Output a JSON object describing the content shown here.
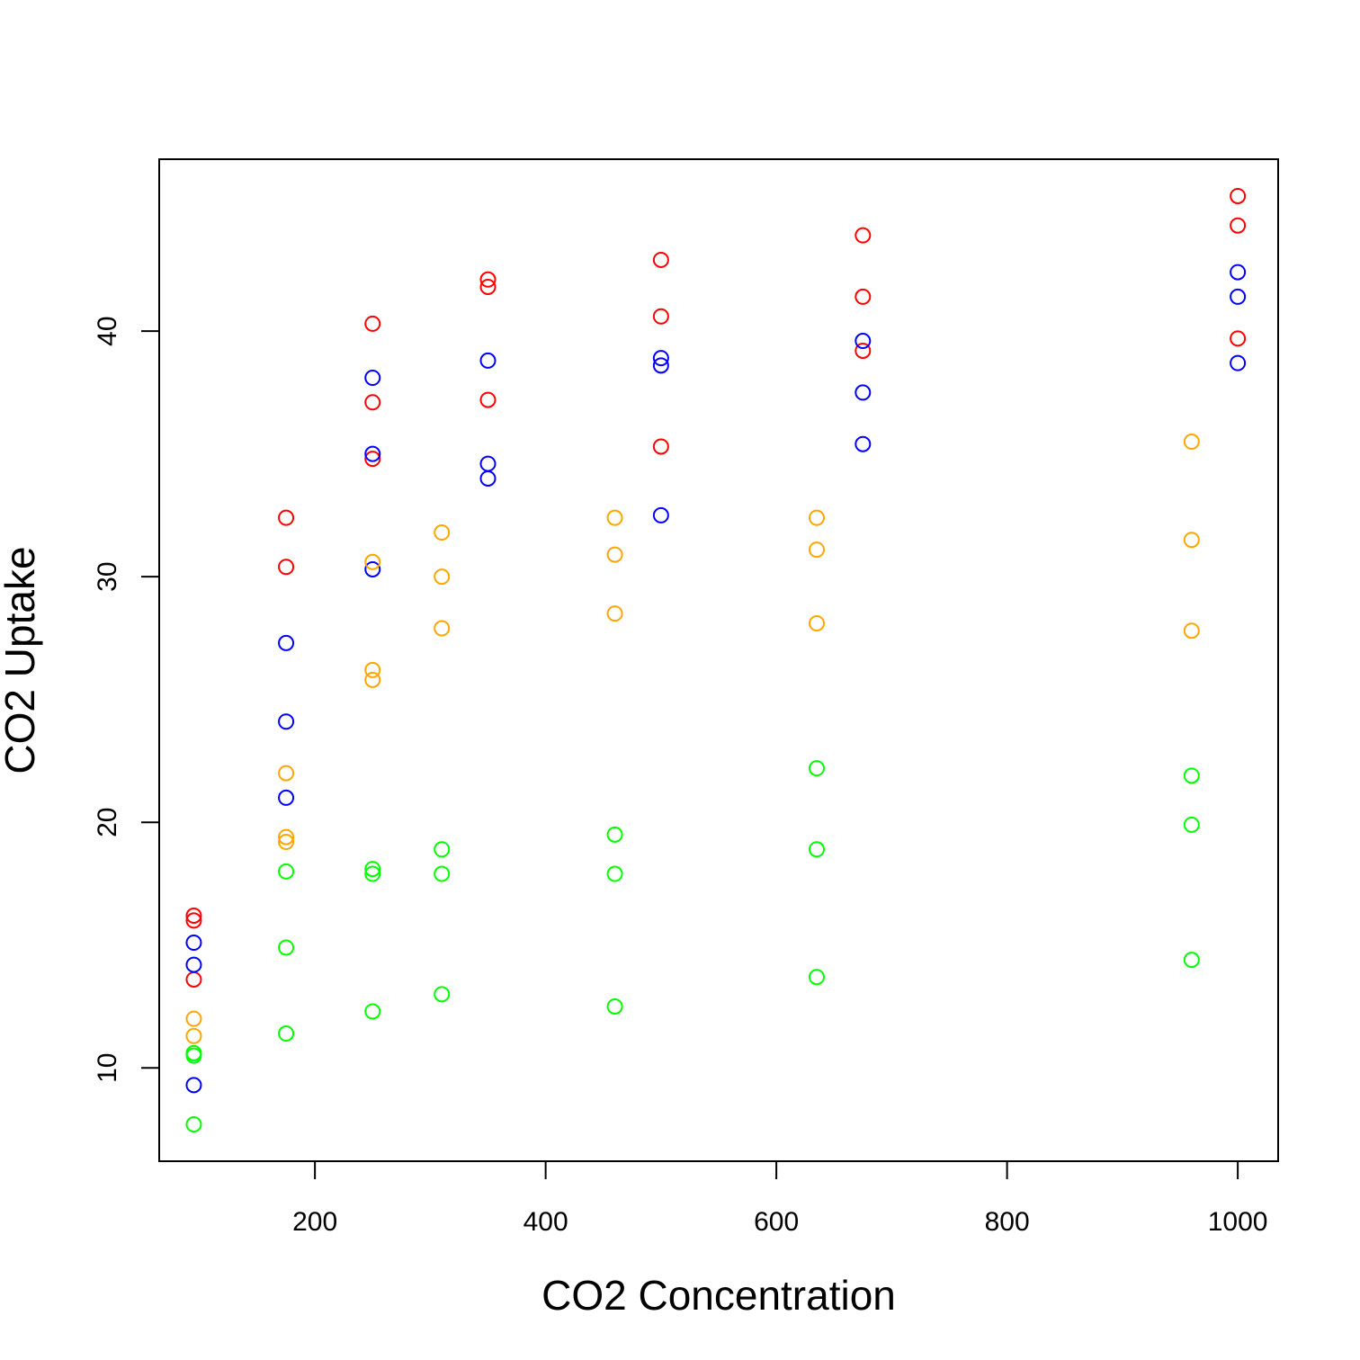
{
  "chart_data": {
    "type": "scatter",
    "title": "",
    "xlabel": "CO2 Concentration",
    "ylabel": "CO2 Uptake",
    "xlim": [
      65,
      1035
    ],
    "ylim": [
      6.2,
      47
    ],
    "xticks": [
      200,
      400,
      600,
      800,
      1000
    ],
    "yticks": [
      10,
      20,
      30,
      40
    ],
    "grid": false,
    "legend": "none",
    "marker": "open-circle",
    "series": [
      {
        "color": "#ff0000",
        "points": [
          [
            95,
            16.0
          ],
          [
            95,
            13.6
          ],
          [
            95,
            16.2
          ],
          [
            175,
            30.4
          ],
          [
            175,
            32.4
          ],
          [
            250,
            34.8
          ],
          [
            250,
            37.1
          ],
          [
            250,
            40.3
          ],
          [
            350,
            37.2
          ],
          [
            350,
            41.8
          ],
          [
            350,
            42.1
          ],
          [
            500,
            35.3
          ],
          [
            500,
            40.6
          ],
          [
            500,
            42.9
          ],
          [
            675,
            39.2
          ],
          [
            675,
            41.4
          ],
          [
            675,
            43.9
          ],
          [
            1000,
            39.7
          ],
          [
            1000,
            44.3
          ],
          [
            1000,
            45.5
          ]
        ]
      },
      {
        "color": "#0000ff",
        "points": [
          [
            95,
            15.1
          ],
          [
            95,
            14.2
          ],
          [
            95,
            9.3
          ],
          [
            175,
            27.3
          ],
          [
            175,
            24.1
          ],
          [
            175,
            21.0
          ],
          [
            250,
            35.0
          ],
          [
            250,
            38.1
          ],
          [
            250,
            30.3
          ],
          [
            350,
            34.6
          ],
          [
            350,
            34.0
          ],
          [
            350,
            38.8
          ],
          [
            500,
            38.9
          ],
          [
            500,
            38.6
          ],
          [
            500,
            32.5
          ],
          [
            675,
            37.5
          ],
          [
            675,
            35.4
          ],
          [
            675,
            39.6
          ],
          [
            1000,
            42.4
          ],
          [
            1000,
            41.4
          ],
          [
            1000,
            38.7
          ]
        ]
      },
      {
        "color": "#ffa500",
        "points": [
          [
            95,
            12.0
          ],
          [
            95,
            11.3
          ],
          [
            95,
            10.6
          ],
          [
            175,
            22.0
          ],
          [
            175,
            19.4
          ],
          [
            175,
            19.2
          ],
          [
            250,
            30.6
          ],
          [
            250,
            25.8
          ],
          [
            250,
            26.2
          ],
          [
            310,
            31.8
          ],
          [
            310,
            30.0
          ],
          [
            310,
            27.9
          ],
          [
            460,
            32.4
          ],
          [
            460,
            30.9
          ],
          [
            460,
            28.5
          ],
          [
            635,
            32.4
          ],
          [
            635,
            31.1
          ],
          [
            635,
            28.1
          ],
          [
            960,
            35.5
          ],
          [
            960,
            31.5
          ],
          [
            960,
            27.8
          ]
        ]
      },
      {
        "color": "#00ff00",
        "points": [
          [
            95,
            10.6
          ],
          [
            95,
            10.5
          ],
          [
            95,
            7.7
          ],
          [
            175,
            18.0
          ],
          [
            175,
            14.9
          ],
          [
            175,
            11.4
          ],
          [
            250,
            17.9
          ],
          [
            250,
            18.1
          ],
          [
            250,
            12.3
          ],
          [
            310,
            17.9
          ],
          [
            310,
            18.9
          ],
          [
            310,
            13.0
          ],
          [
            460,
            17.9
          ],
          [
            460,
            19.5
          ],
          [
            460,
            12.5
          ],
          [
            635,
            18.9
          ],
          [
            635,
            22.2
          ],
          [
            635,
            13.7
          ],
          [
            960,
            19.9
          ],
          [
            960,
            21.9
          ],
          [
            960,
            14.4
          ]
        ]
      }
    ]
  }
}
